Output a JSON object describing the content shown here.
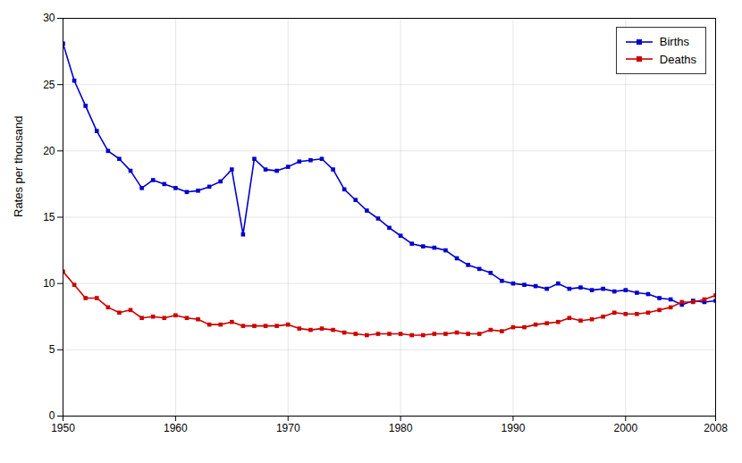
{
  "chart_data": {
    "type": "line",
    "x": [
      1950,
      1951,
      1952,
      1953,
      1954,
      1955,
      1956,
      1957,
      1958,
      1959,
      1960,
      1961,
      1962,
      1963,
      1964,
      1965,
      1966,
      1967,
      1968,
      1969,
      1970,
      1971,
      1972,
      1973,
      1974,
      1975,
      1976,
      1977,
      1978,
      1979,
      1980,
      1981,
      1982,
      1983,
      1984,
      1985,
      1986,
      1987,
      1988,
      1989,
      1990,
      1991,
      1992,
      1993,
      1994,
      1995,
      1996,
      1997,
      1998,
      1999,
      2000,
      2001,
      2002,
      2003,
      2004,
      2005,
      2006,
      2007,
      2008
    ],
    "series": [
      {
        "name": "Births",
        "color": "#0000cc",
        "values": [
          28.1,
          25.3,
          23.4,
          21.5,
          20.0,
          19.4,
          18.5,
          17.2,
          17.8,
          17.5,
          17.2,
          16.9,
          17.0,
          17.3,
          17.7,
          18.6,
          13.7,
          19.4,
          18.6,
          18.5,
          18.8,
          19.2,
          19.3,
          19.4,
          18.6,
          17.1,
          16.3,
          15.5,
          14.9,
          14.2,
          13.6,
          13.0,
          12.8,
          12.7,
          12.5,
          11.9,
          11.4,
          11.1,
          10.8,
          10.2,
          10.0,
          9.9,
          9.8,
          9.6,
          10.0,
          9.6,
          9.7,
          9.5,
          9.6,
          9.4,
          9.5,
          9.3,
          9.2,
          8.9,
          8.8,
          8.4,
          8.7,
          8.6,
          8.7
        ]
      },
      {
        "name": "Deaths",
        "color": "#cc0000",
        "values": [
          10.9,
          9.9,
          8.9,
          8.9,
          8.2,
          7.8,
          8.0,
          7.4,
          7.5,
          7.4,
          7.6,
          7.4,
          7.3,
          6.9,
          6.9,
          7.1,
          6.8,
          6.8,
          6.8,
          6.8,
          6.9,
          6.6,
          6.5,
          6.6,
          6.5,
          6.3,
          6.2,
          6.1,
          6.2,
          6.2,
          6.2,
          6.1,
          6.1,
          6.2,
          6.2,
          6.3,
          6.2,
          6.2,
          6.5,
          6.4,
          6.7,
          6.7,
          6.9,
          7.0,
          7.1,
          7.4,
          7.2,
          7.3,
          7.5,
          7.8,
          7.7,
          7.7,
          7.8,
          8.0,
          8.2,
          8.6,
          8.6,
          8.8,
          9.1
        ]
      }
    ],
    "ylabel": "Rates per thousand",
    "xlim": [
      1950,
      2008
    ],
    "ylim": [
      0,
      30
    ],
    "xticks": [
      1950,
      1960,
      1970,
      1980,
      1990,
      2000,
      2008
    ],
    "yticks": [
      0,
      5,
      10,
      15,
      20,
      25,
      30
    ],
    "grid": true,
    "legend": "upper right",
    "marker": "square"
  }
}
